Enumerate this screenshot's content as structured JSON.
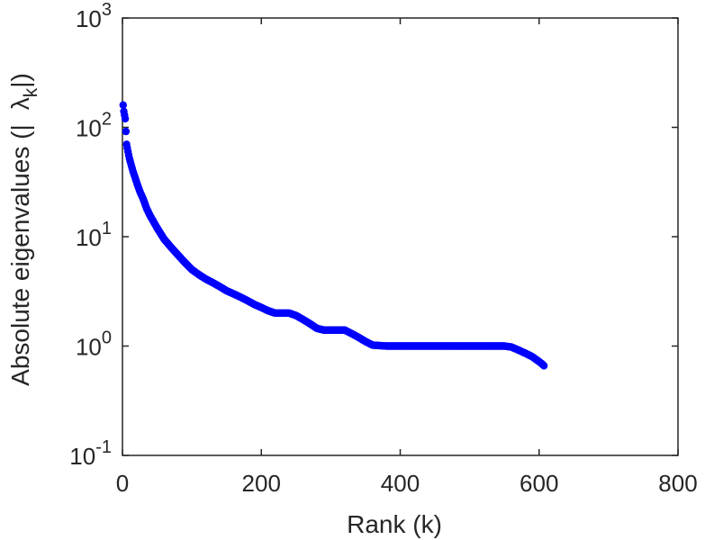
{
  "chart_data": {
    "type": "scatter",
    "xlabel": "Rank (k)",
    "ylabel_parts": [
      "Absolute eigenvalues (|",
      "λ",
      "k",
      "|)"
    ],
    "yscale": "log",
    "xlim": [
      0,
      800
    ],
    "ylim": [
      0.1,
      1000
    ],
    "x_ticks": [
      "0",
      "200",
      "400",
      "600",
      "800"
    ],
    "y_ticks": [
      {
        "base": "10",
        "exp": "-1"
      },
      {
        "base": "10",
        "exp": "0"
      },
      {
        "base": "10",
        "exp": "1"
      },
      {
        "base": "10",
        "exp": "2"
      },
      {
        "base": "10",
        "exp": "3"
      }
    ],
    "series": [
      {
        "color": "#0000ff",
        "x": [
          1,
          2,
          4,
          6,
          8,
          10,
          15,
          20,
          25,
          30,
          35,
          40,
          50,
          60,
          70,
          80,
          90,
          100,
          110,
          120,
          130,
          140,
          150,
          160,
          170,
          180,
          190,
          200,
          210,
          220,
          230,
          240,
          250,
          260,
          270,
          280,
          290,
          300,
          310,
          320,
          330,
          340,
          350,
          360,
          380,
          400,
          450,
          500,
          550,
          560,
          570,
          580,
          590,
          600,
          605,
          607
        ],
        "y": [
          160,
          140,
          120,
          70,
          60,
          52,
          40,
          32,
          26,
          22,
          18,
          15.5,
          12,
          9.5,
          8,
          6.8,
          5.8,
          5.0,
          4.5,
          4.1,
          3.8,
          3.5,
          3.2,
          3.0,
          2.8,
          2.6,
          2.4,
          2.25,
          2.1,
          2.0,
          2.0,
          2.0,
          1.9,
          1.75,
          1.6,
          1.45,
          1.4,
          1.4,
          1.4,
          1.4,
          1.3,
          1.2,
          1.1,
          1.02,
          1.0,
          1.0,
          1.0,
          1.0,
          1.0,
          0.98,
          0.92,
          0.86,
          0.8,
          0.72,
          0.68,
          0.66
        ]
      }
    ]
  }
}
